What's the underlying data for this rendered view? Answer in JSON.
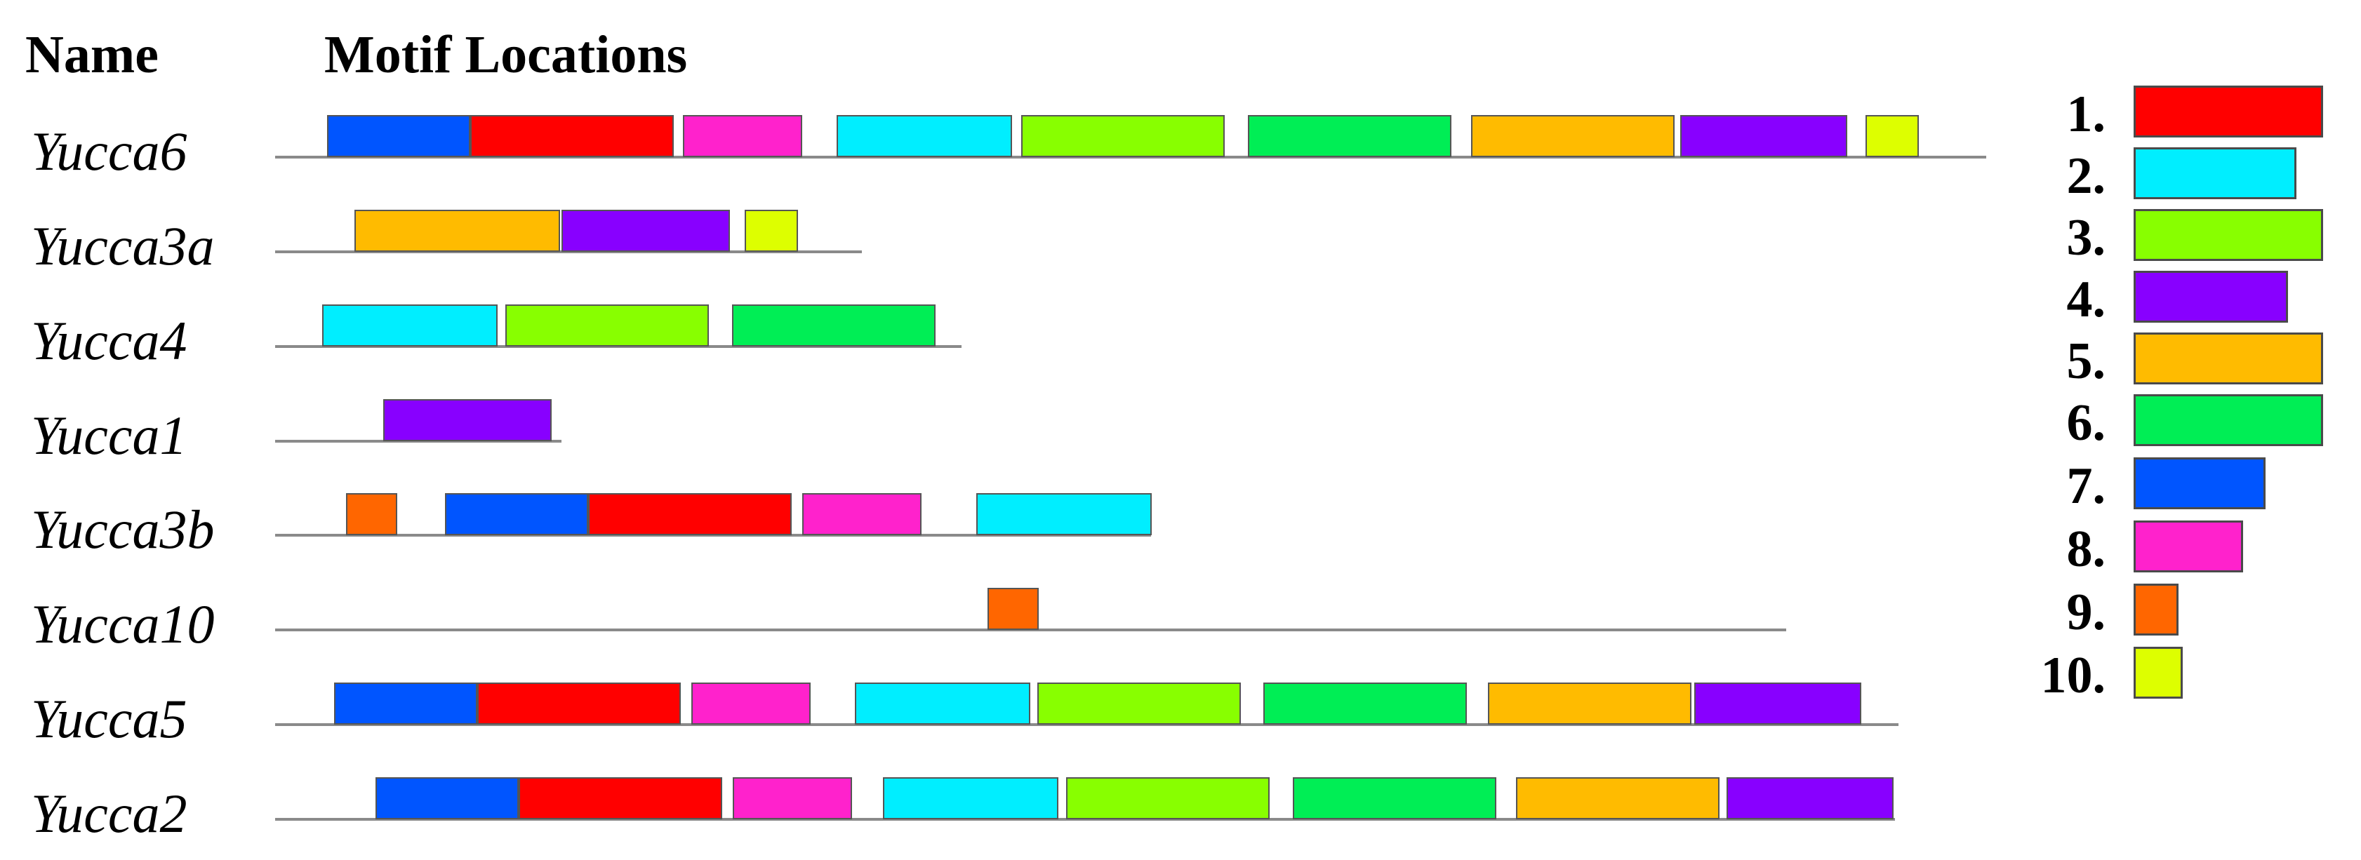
{
  "headers": {
    "name": "Name",
    "motif_locations": "Motif Locations"
  },
  "motif_colors": {
    "1": "#ff0000",
    "2": "#00eeff",
    "3": "#88ff00",
    "4": "#8800ff",
    "5": "#ffbb00",
    "6": "#00ee55",
    "7": "#0055ff",
    "8": "#ff22cc",
    "9": "#ff6600",
    "10": "#ddff00"
  },
  "genes": [
    {
      "name": "Yucca6",
      "motifs": [
        7,
        1,
        8,
        2,
        3,
        6,
        5,
        4,
        10
      ]
    },
    {
      "name": "Yucca3a",
      "motifs": [
        5,
        4,
        10
      ]
    },
    {
      "name": "Yucca4",
      "motifs": [
        2,
        3,
        6
      ]
    },
    {
      "name": "Yucca1",
      "motifs": [
        4
      ]
    },
    {
      "name": "Yucca3b",
      "motifs": [
        9,
        7,
        1,
        8,
        2
      ]
    },
    {
      "name": "Yucca10",
      "motifs": [
        9
      ]
    },
    {
      "name": "Yucca5",
      "motifs": [
        7,
        1,
        8,
        2,
        3,
        6,
        5,
        4
      ]
    },
    {
      "name": "Yucca2",
      "motifs": [
        7,
        1,
        8,
        2,
        3,
        6,
        5,
        4
      ]
    }
  ],
  "legend": [
    {
      "label": "1.",
      "motif": 1
    },
    {
      "label": "2.",
      "motif": 2
    },
    {
      "label": "3.",
      "motif": 3
    },
    {
      "label": "4.",
      "motif": 4
    },
    {
      "label": "5.",
      "motif": 5
    },
    {
      "label": "6.",
      "motif": 6
    },
    {
      "label": "7.",
      "motif": 7
    },
    {
      "label": "8.",
      "motif": 8
    },
    {
      "label": "9.",
      "motif": 9
    },
    {
      "label": "10.",
      "motif": 10
    }
  ]
}
